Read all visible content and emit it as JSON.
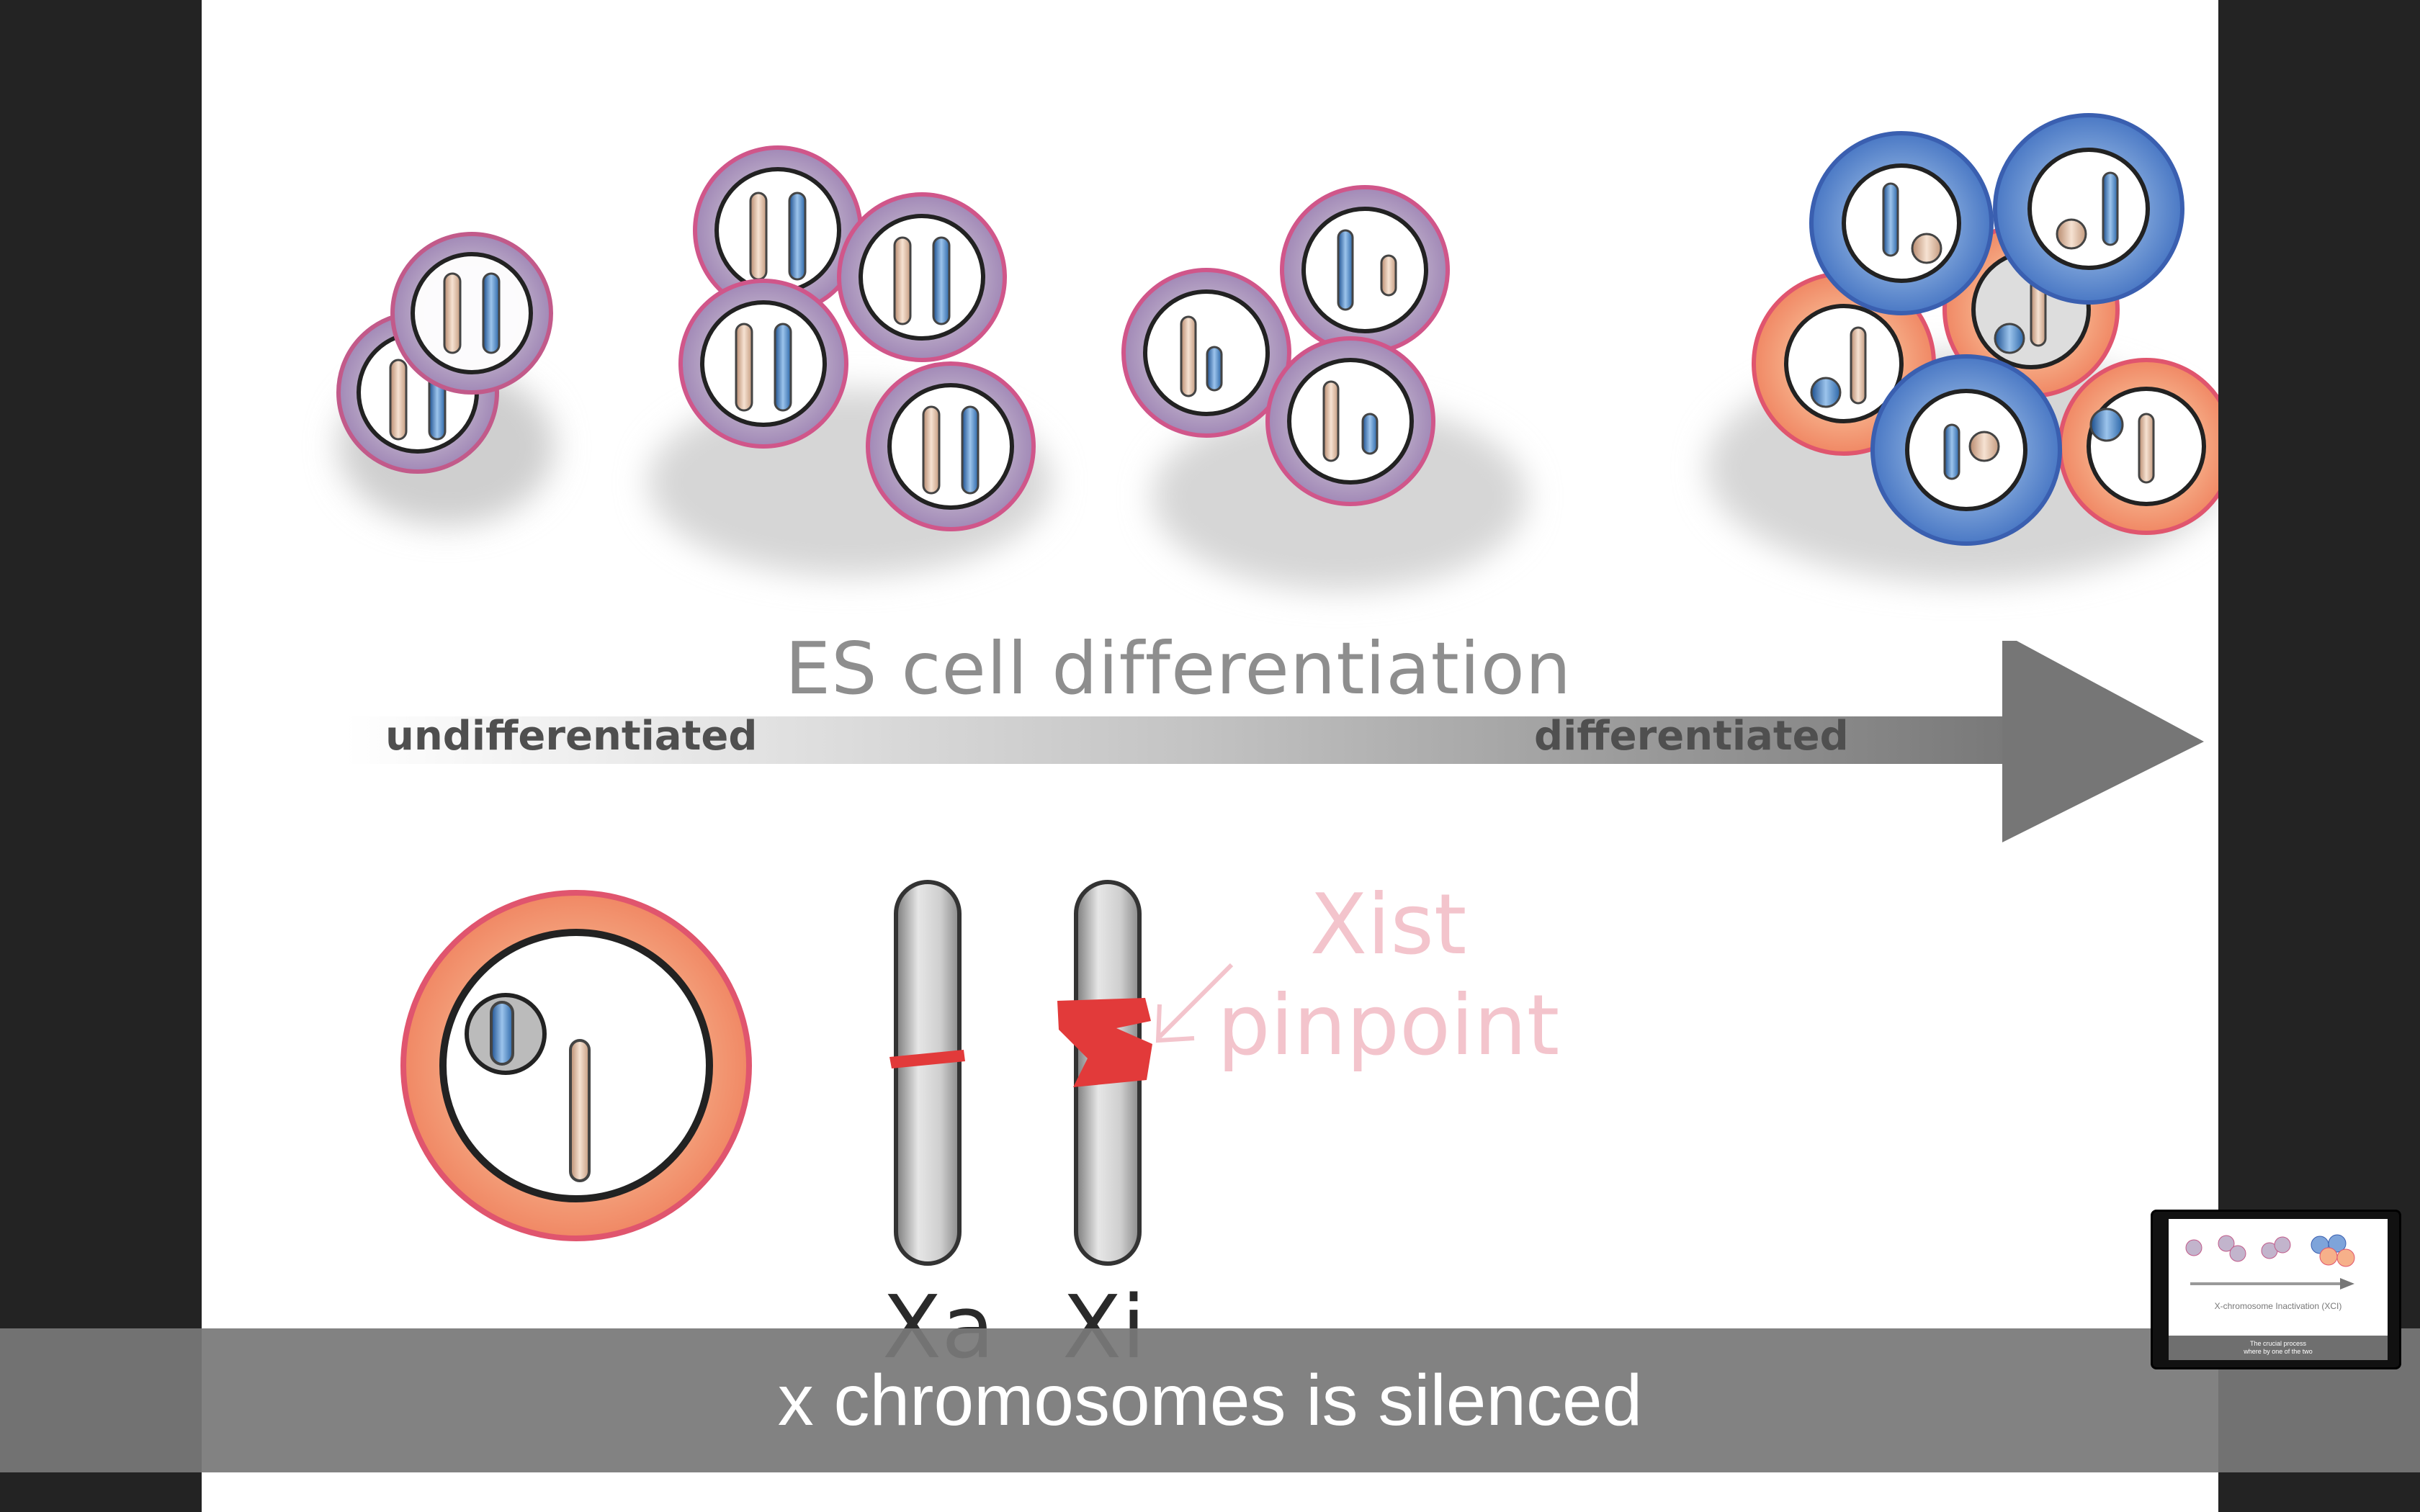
{
  "slide": {
    "arrow": {
      "title": "ES cell differentiation",
      "left_label": "undifferentiated",
      "right_label": "differentiated"
    },
    "chromosomes": {
      "xa_label": "Xa",
      "xi_label": "Xi",
      "xist_label": "Xist\npinpoint"
    }
  },
  "caption": {
    "text": "x chromosomes is silenced"
  },
  "thumbnail": {
    "title": "X-chromosome Inactivation (XCI)",
    "caption_line1": "The crucial process",
    "caption_line2": "where by one of the two"
  },
  "colors": {
    "background": "#232323",
    "slide": "#ffffff",
    "blue_chromosome": "#3a7bbf",
    "tan_chromosome": "#d8b59c",
    "xist_red": "#e23a3a",
    "caption_bar": "#787878"
  }
}
